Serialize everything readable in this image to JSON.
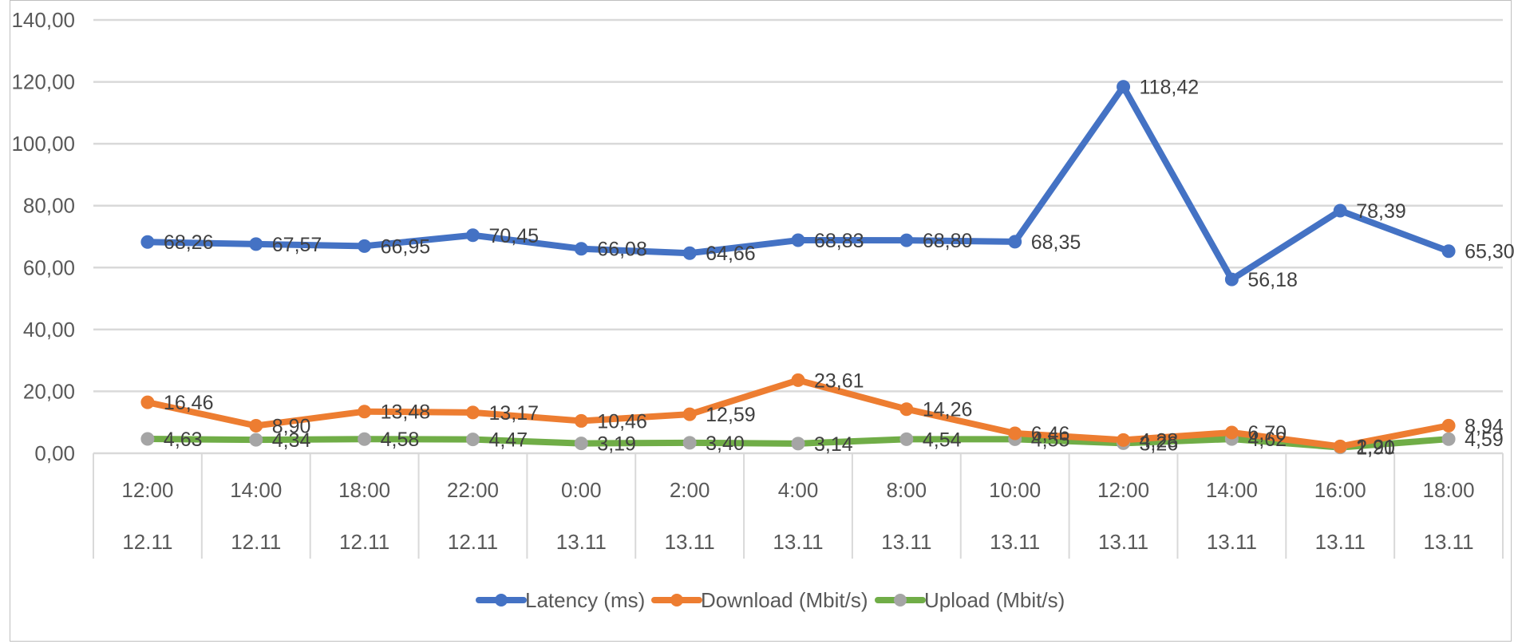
{
  "chart_data": {
    "type": "line",
    "categories": [
      {
        "time": "12:00",
        "date": "12.11"
      },
      {
        "time": "14:00",
        "date": "12.11"
      },
      {
        "time": "18:00",
        "date": "12.11"
      },
      {
        "time": "22:00",
        "date": "12.11"
      },
      {
        "time": "0:00",
        "date": "13.11"
      },
      {
        "time": "2:00",
        "date": "13.11"
      },
      {
        "time": "4:00",
        "date": "13.11"
      },
      {
        "time": "8:00",
        "date": "13.11"
      },
      {
        "time": "10:00",
        "date": "13.11"
      },
      {
        "time": "12:00",
        "date": "13.11"
      },
      {
        "time": "14:00",
        "date": "13.11"
      },
      {
        "time": "16:00",
        "date": "13.11"
      },
      {
        "time": "18:00",
        "date": "13.11"
      }
    ],
    "series": [
      {
        "name": "Latency (ms)",
        "color": "#4472c4",
        "values": [
          68.26,
          67.57,
          66.95,
          70.45,
          66.08,
          64.66,
          68.83,
          68.8,
          68.35,
          118.42,
          56.18,
          78.39,
          65.3
        ],
        "labels": [
          "68,26",
          "67,57",
          "66,95",
          "70,45",
          "66,08",
          "64,66",
          "68,83",
          "68,80",
          "68,35",
          "118,42",
          "56,18",
          "78,39",
          "65,30"
        ]
      },
      {
        "name": "Download (Mbit/s)",
        "color": "#ed7d31",
        "values": [
          16.46,
          8.9,
          13.48,
          13.17,
          10.46,
          12.59,
          23.61,
          14.26,
          6.46,
          4.28,
          6.7,
          2.21,
          8.94
        ],
        "labels": [
          "16,46",
          "8,90",
          "13,48",
          "13,17",
          "10,46",
          "12,59",
          "23,61",
          "14,26",
          "6,46",
          "4,28",
          "6,70",
          "2,21",
          "8,94"
        ]
      },
      {
        "name": "Upload (Mbit/s)",
        "color": "#70ad47",
        "marker_color": "#a5a5a5",
        "values": [
          4.63,
          4.34,
          4.58,
          4.47,
          3.19,
          3.4,
          3.14,
          4.54,
          4.55,
          3.26,
          4.62,
          1.9,
          4.59
        ],
        "labels": [
          "4,63",
          "4,34",
          "4,58",
          "4,47",
          "3,19",
          "3,40",
          "3,14",
          "4,54",
          "4,55",
          "3,26",
          "4,62",
          "1,90",
          "4,59"
        ]
      }
    ],
    "y_ticks": [
      "0,00",
      "20,00",
      "40,00",
      "60,00",
      "80,00",
      "100,00",
      "120,00",
      "140,00"
    ],
    "ylim": [
      0,
      140
    ],
    "grid": true,
    "legend_position": "bottom"
  }
}
